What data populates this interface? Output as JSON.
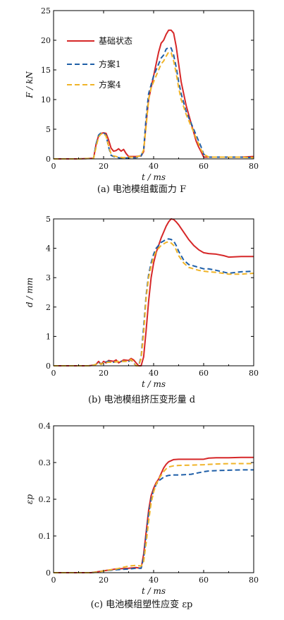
{
  "legend": [
    "基础状态",
    "方案1",
    "方案4"
  ],
  "colors": {
    "base": "#d62728",
    "plan1": "#1f5fa8",
    "plan4": "#f0b429",
    "axis": "#000000"
  },
  "chart_data": [
    {
      "type": "line",
      "caption": "(a) 电池模组截面力 F",
      "xlabel": "t / ms",
      "ylabel": "F / kN",
      "xlim": [
        0,
        80
      ],
      "ylim": [
        0,
        25
      ],
      "xticks": [
        0,
        20,
        40,
        60,
        80
      ],
      "yticks": [
        0,
        5,
        10,
        15,
        20,
        25
      ],
      "legend_position": "top-left",
      "series": [
        {
          "name": "基础状态",
          "color": "#d62728",
          "dash": "solid",
          "x": [
            0,
            10,
            16,
            17,
            18,
            19,
            20,
            21,
            22,
            23,
            24,
            25,
            26,
            27,
            28,
            29,
            30,
            33,
            35,
            36,
            37,
            38,
            39,
            40,
            41,
            42,
            43,
            44,
            45,
            46,
            47,
            48,
            49,
            50,
            51,
            52,
            53,
            54,
            55,
            56,
            57,
            58,
            59,
            60,
            62,
            65,
            70,
            75,
            80
          ],
          "y": [
            0,
            0,
            0.1,
            2.5,
            3.9,
            4.3,
            4.4,
            4.3,
            3.2,
            1.8,
            1.3,
            1.4,
            1.7,
            1.3,
            1.6,
            0.9,
            0.4,
            0.4,
            0.5,
            1.2,
            6,
            10,
            12,
            14,
            16,
            18,
            19.5,
            20,
            21,
            21.7,
            21.7,
            21.2,
            19,
            16,
            13,
            11,
            9,
            7.5,
            6,
            4.5,
            3,
            2,
            1.2,
            0.3,
            0.3,
            0.3,
            0.3,
            0.3,
            0.4
          ]
        },
        {
          "name": "方案1",
          "color": "#1f5fa8",
          "dash": "dashed",
          "x": [
            0,
            10,
            16,
            17,
            18,
            19,
            20,
            21,
            22,
            23,
            24,
            25,
            26,
            28,
            30,
            33,
            35,
            36,
            37,
            38,
            39,
            40,
            41,
            42,
            43,
            44,
            45,
            46,
            47,
            48,
            49,
            50,
            51,
            52,
            53,
            54,
            55,
            56,
            57,
            58,
            59,
            60,
            62,
            65,
            70,
            75,
            80
          ],
          "y": [
            0,
            0,
            0.1,
            2.5,
            4,
            4.4,
            4.4,
            4,
            2,
            0.6,
            0.4,
            0.3,
            0.2,
            0.1,
            0.2,
            0.2,
            0.5,
            1.5,
            7,
            11,
            12.5,
            14,
            15,
            16,
            17,
            17.5,
            18.5,
            18.8,
            18.7,
            17.5,
            15.5,
            13,
            11,
            9.5,
            8,
            7,
            6,
            5,
            4,
            3,
            2,
            0.8,
            0.3,
            0.3,
            0.3,
            0.3,
            0.2
          ]
        },
        {
          "name": "方案4",
          "color": "#f0b429",
          "dash": "dashed",
          "x": [
            0,
            10,
            16,
            17,
            18,
            19,
            20,
            21,
            22,
            23,
            24,
            25,
            26,
            28,
            30,
            33,
            35,
            36,
            37,
            38,
            39,
            40,
            41,
            42,
            43,
            44,
            45,
            46,
            47,
            48,
            49,
            50,
            51,
            52,
            53,
            54,
            55,
            56,
            57,
            58,
            59,
            60,
            62,
            65,
            70,
            75,
            80
          ],
          "y": [
            0,
            0,
            0.1,
            2,
            3.7,
            4.2,
            4.3,
            3.8,
            2.2,
            0.8,
            0.5,
            0.4,
            0.3,
            0.2,
            0.3,
            0.3,
            0.6,
            1.5,
            5.5,
            10,
            12,
            13,
            14,
            15,
            16,
            16.5,
            17.3,
            18,
            17.9,
            16.5,
            14.5,
            12,
            10,
            8.8,
            7.5,
            6.5,
            5.5,
            4.5,
            3.5,
            2.5,
            1.5,
            0.8,
            0.3,
            0.3,
            0.3,
            0.3,
            0.2
          ]
        }
      ]
    },
    {
      "type": "line",
      "caption": "(b) 电池模组挤压变形量 d",
      "xlabel": "t / ms",
      "ylabel": "d / mm",
      "xlim": [
        0,
        80
      ],
      "ylim": [
        0,
        5
      ],
      "xticks": [
        0,
        20,
        40,
        60,
        80
      ],
      "yticks": [
        0,
        1,
        2,
        3,
        4,
        5
      ],
      "series": [
        {
          "name": "基础状态",
          "color": "#d62728",
          "dash": "solid",
          "x": [
            0,
            10,
            14,
            16,
            17,
            18,
            19,
            20,
            21,
            22,
            24,
            25,
            26,
            28,
            30,
            31,
            32,
            33,
            34,
            35,
            36,
            37,
            38,
            39,
            40,
            41,
            42,
            43,
            44,
            45,
            46,
            47,
            48,
            49,
            50,
            52,
            54,
            56,
            58,
            60,
            62,
            65,
            68,
            70,
            75,
            80
          ],
          "y": [
            0,
            0,
            0,
            0.02,
            0.05,
            0.15,
            0.05,
            0.15,
            0.1,
            0.18,
            0.15,
            0.2,
            0.1,
            0.2,
            0.18,
            0.25,
            0.2,
            0.1,
            0,
            0,
            0.3,
            1.2,
            2.2,
            3,
            3.5,
            3.85,
            4.1,
            4.35,
            4.55,
            4.75,
            4.9,
            5.0,
            4.98,
            4.9,
            4.8,
            4.55,
            4.3,
            4.1,
            3.95,
            3.85,
            3.82,
            3.8,
            3.75,
            3.7,
            3.72,
            3.72
          ]
        },
        {
          "name": "方案1",
          "color": "#1f5fa8",
          "dash": "dashed",
          "x": [
            0,
            10,
            14,
            16,
            17,
            18,
            19,
            20,
            22,
            24,
            26,
            28,
            30,
            31,
            32,
            33,
            34,
            35,
            36,
            37,
            38,
            39,
            40,
            41,
            42,
            43,
            44,
            45,
            46,
            47,
            48,
            49,
            50,
            52,
            54,
            56,
            58,
            60,
            62,
            65,
            70,
            75,
            80
          ],
          "y": [
            0,
            0,
            0,
            0.02,
            0.05,
            0.12,
            0.05,
            0.12,
            0.15,
            0.12,
            0.15,
            0.15,
            0.15,
            0.2,
            0.1,
            0,
            0,
            0.3,
            1.3,
            2.4,
            3.1,
            3.5,
            3.8,
            4.0,
            4.1,
            4.2,
            4.25,
            4.3,
            4.32,
            4.3,
            4.25,
            4.1,
            3.9,
            3.6,
            3.45,
            3.4,
            3.35,
            3.3,
            3.3,
            3.25,
            3.15,
            3.2,
            3.22
          ]
        },
        {
          "name": "方案4",
          "color": "#f0b429",
          "dash": "dashed",
          "x": [
            0,
            10,
            14,
            16,
            17,
            18,
            19,
            20,
            22,
            24,
            26,
            28,
            30,
            31,
            32,
            33,
            34,
            35,
            36,
            37,
            38,
            39,
            40,
            41,
            42,
            43,
            44,
            45,
            46,
            47,
            48,
            49,
            50,
            52,
            54,
            56,
            58,
            60,
            62,
            65,
            70,
            75,
            80
          ],
          "y": [
            0,
            0,
            0,
            0.02,
            0.05,
            0.1,
            0.05,
            0.1,
            0.12,
            0.12,
            0.15,
            0.15,
            0.15,
            0.22,
            0.1,
            0,
            0,
            0.25,
            1.1,
            2.3,
            3.0,
            3.4,
            3.7,
            3.9,
            4.0,
            4.1,
            4.15,
            4.2,
            4.22,
            4.18,
            4.1,
            3.95,
            3.75,
            3.5,
            3.35,
            3.3,
            3.25,
            3.22,
            3.2,
            3.18,
            3.12,
            3.12,
            3.15
          ]
        }
      ]
    },
    {
      "type": "line",
      "caption": "(c) 电池模组塑性应变 εp",
      "xlabel": "t / ms",
      "ylabel": "εp",
      "xlim": [
        0,
        80
      ],
      "ylim": [
        0,
        0.4
      ],
      "xticks": [
        0,
        20,
        40,
        60,
        80
      ],
      "yticks": [
        0,
        0.1,
        0.2,
        0.3,
        0.4
      ],
      "series": [
        {
          "name": "基础状态",
          "color": "#d62728",
          "dash": "solid",
          "x": [
            0,
            15,
            18,
            20,
            25,
            30,
            33,
            35,
            36,
            37,
            38,
            39,
            40,
            41,
            42,
            43,
            44,
            45,
            46,
            48,
            50,
            55,
            60,
            62,
            65,
            70,
            75,
            80
          ],
          "y": [
            0,
            0,
            0.003,
            0.005,
            0.01,
            0.012,
            0.014,
            0.012,
            0.05,
            0.11,
            0.17,
            0.21,
            0.23,
            0.245,
            0.255,
            0.27,
            0.285,
            0.295,
            0.302,
            0.308,
            0.309,
            0.309,
            0.309,
            0.312,
            0.313,
            0.313,
            0.314,
            0.314
          ]
        },
        {
          "name": "方案1",
          "color": "#1f5fa8",
          "dash": "dashed",
          "x": [
            0,
            15,
            18,
            20,
            25,
            30,
            33,
            35,
            36,
            37,
            38,
            39,
            40,
            41,
            42,
            43,
            44,
            45,
            46,
            48,
            50,
            55,
            60,
            62,
            65,
            70,
            75,
            80
          ],
          "y": [
            0,
            0,
            0.002,
            0.005,
            0.008,
            0.01,
            0.012,
            0.012,
            0.04,
            0.1,
            0.16,
            0.2,
            0.225,
            0.24,
            0.25,
            0.255,
            0.26,
            0.263,
            0.265,
            0.266,
            0.266,
            0.268,
            0.275,
            0.277,
            0.278,
            0.279,
            0.28,
            0.28
          ]
        },
        {
          "name": "方案4",
          "color": "#f0b429",
          "dash": "dashed",
          "x": [
            0,
            15,
            18,
            20,
            25,
            28,
            30,
            33,
            35,
            36,
            37,
            38,
            39,
            40,
            41,
            42,
            43,
            44,
            45,
            46,
            48,
            50,
            55,
            60,
            62,
            65,
            70,
            75,
            80
          ],
          "y": [
            0,
            0,
            0.002,
            0.005,
            0.01,
            0.015,
            0.018,
            0.02,
            0.018,
            0.03,
            0.08,
            0.14,
            0.19,
            0.22,
            0.24,
            0.255,
            0.265,
            0.275,
            0.283,
            0.288,
            0.291,
            0.292,
            0.293,
            0.294,
            0.295,
            0.296,
            0.297,
            0.297,
            0.297
          ]
        }
      ]
    }
  ]
}
